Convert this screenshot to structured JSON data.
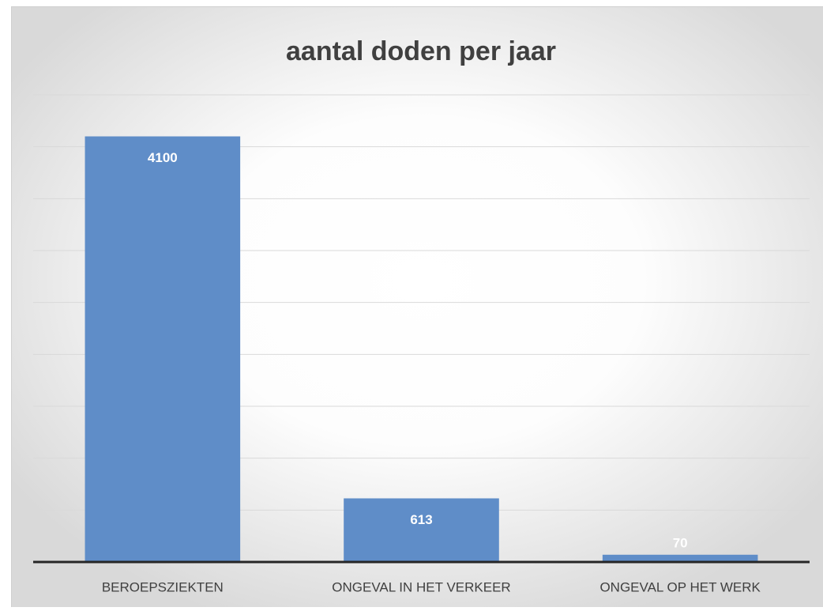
{
  "chart_data": {
    "type": "bar",
    "title": "aantal doden per jaar",
    "categories": [
      "BEROEPSZIEKTEN",
      "ONGEVAL IN HET VERKEER",
      "ONGEVAL OP HET WERK"
    ],
    "values": [
      4100,
      613,
      70
    ],
    "color": "#5f8dc8",
    "ylim": [
      0,
      4500
    ],
    "yticks": [
      0,
      500,
      1000,
      1500,
      2000,
      2500,
      3000,
      3500,
      4000,
      4500
    ],
    "grid": true
  }
}
